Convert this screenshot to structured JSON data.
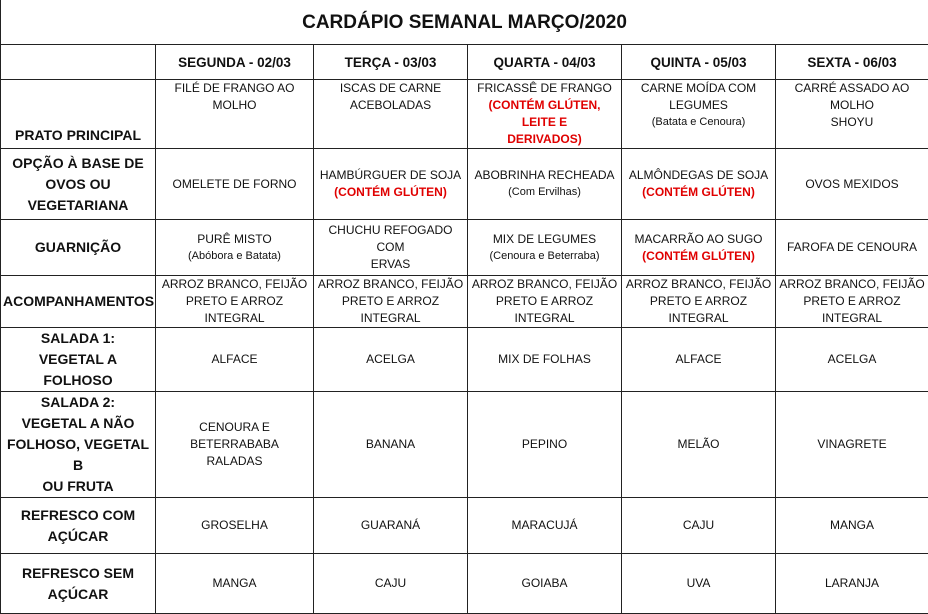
{
  "title": "CARDÁPIO SEMANAL MARÇO/2020",
  "colors": {
    "allergen": "#e00000",
    "border": "#222222"
  },
  "days": [
    "SEGUNDA - 02/03",
    "TERÇA - 03/03",
    "QUARTA - 04/03",
    "QUINTA - 05/03",
    "SEXTA - 06/03"
  ],
  "rows": [
    {
      "label": "PRATO PRINCIPAL",
      "cells": [
        {
          "main": "FILÉ DE FRANGO AO MOLHO"
        },
        {
          "main": "ISCAS DE CARNE\nACEBOLADAS"
        },
        {
          "main": "FRICASSÊ DE FRANGO",
          "note": "(CONTÉM GLÚTEN, LEITE E\nDERIVADOS)",
          "note_style": "red"
        },
        {
          "main": "CARNE MOÍDA COM\nLEGUMES",
          "note": "(Batata e Cenoura)",
          "note_style": "sub"
        },
        {
          "main": "CARRÉ ASSADO AO MOLHO\nSHOYU"
        }
      ]
    },
    {
      "label": "OPÇÃO À BASE DE\nOVOS OU VEGETARIANA",
      "cells": [
        {
          "main": "OMELETE DE FORNO"
        },
        {
          "main": "HAMBÚRGUER DE SOJA",
          "note": "(CONTÉM GLÚTEN)",
          "note_style": "red"
        },
        {
          "main": "ABOBRINHA RECHEADA",
          "note": "(Com Ervilhas)",
          "note_style": "sub"
        },
        {
          "main": "ALMÔNDEGAS DE SOJA",
          "note": "(CONTÉM GLÚTEN)",
          "note_style": "red"
        },
        {
          "main": "OVOS MEXIDOS"
        }
      ]
    },
    {
      "label": "GUARNIÇÃO",
      "cells": [
        {
          "main": "PURÊ MISTO",
          "note": "(Abóbora e Batata)",
          "note_style": "sub"
        },
        {
          "main": "CHUCHU REFOGADO COM\nERVAS"
        },
        {
          "main": "MIX DE LEGUMES",
          "note": "(Cenoura e Beterraba)",
          "note_style": "sub"
        },
        {
          "main": "MACARRÃO AO SUGO",
          "note": "(CONTÉM GLÚTEN)",
          "note_style": "red"
        },
        {
          "main": "FAROFA DE CENOURA"
        }
      ]
    },
    {
      "label": "ACOMPANHAMENTOS",
      "cells": [
        {
          "main": "ARROZ BRANCO, FEIJÃO\nPRETO E ARROZ INTEGRAL"
        },
        {
          "main": "ARROZ BRANCO, FEIJÃO\nPRETO E ARROZ INTEGRAL"
        },
        {
          "main": "ARROZ BRANCO, FEIJÃO\nPRETO E ARROZ INTEGRAL"
        },
        {
          "main": "ARROZ BRANCO, FEIJÃO\nPRETO E ARROZ INTEGRAL"
        },
        {
          "main": "ARROZ BRANCO, FEIJÃO\nPRETO E ARROZ INTEGRAL"
        }
      ]
    },
    {
      "label": "SALADA 1:\nVEGETAL A FOLHOSO",
      "cells": [
        {
          "main": "ALFACE"
        },
        {
          "main": "ACELGA"
        },
        {
          "main": "MIX DE FOLHAS"
        },
        {
          "main": "ALFACE"
        },
        {
          "main": "ACELGA"
        }
      ]
    },
    {
      "label": "SALADA 2:\nVEGETAL A NÃO\nFOLHOSO, VEGETAL B\nOU FRUTA",
      "cells": [
        {
          "main": "CENOURA E BETERRABABA\nRALADAS"
        },
        {
          "main": "BANANA"
        },
        {
          "main": "PEPINO"
        },
        {
          "main": "MELÃO"
        },
        {
          "main": "VINAGRETE"
        }
      ]
    },
    {
      "label": "REFRESCO COM\nAÇÚCAR",
      "cells": [
        {
          "main": "GROSELHA"
        },
        {
          "main": "GUARANÁ"
        },
        {
          "main": "MARACUJÁ"
        },
        {
          "main": "CAJU"
        },
        {
          "main": "MANGA"
        }
      ]
    },
    {
      "label": "REFRESCO SEM\nAÇÚCAR",
      "cells": [
        {
          "main": "MANGA"
        },
        {
          "main": "CAJU"
        },
        {
          "main": "GOIABA"
        },
        {
          "main": "UVA"
        },
        {
          "main": "LARANJA"
        }
      ]
    }
  ]
}
